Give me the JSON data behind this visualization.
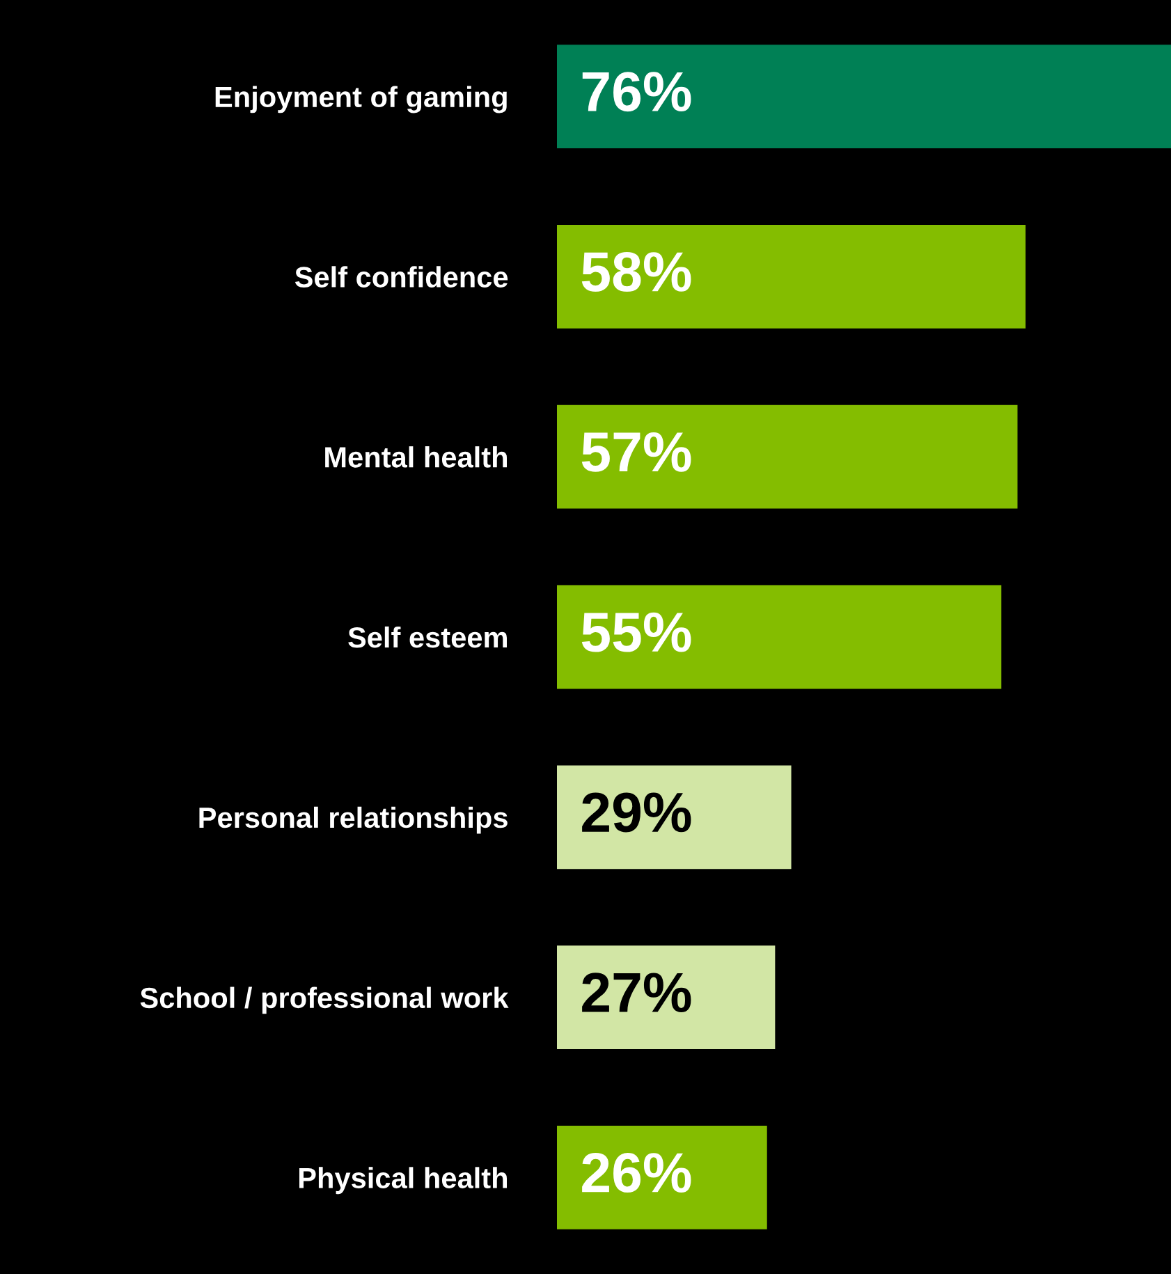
{
  "chart_data": {
    "type": "bar",
    "orientation": "horizontal",
    "categories": [
      "Enjoyment of gaming",
      "Self confidence",
      "Mental health",
      "Self esteem",
      "Personal relationships",
      "School / professional work",
      "Physical health"
    ],
    "values": [
      76,
      58,
      57,
      55,
      29,
      27,
      26
    ],
    "colors": [
      "#008055",
      "#84bd00",
      "#84bd00",
      "#84bd00",
      "#d2e6a5",
      "#d2e6a5",
      "#84bd00"
    ],
    "value_labels": [
      "76%",
      "58%",
      "57%",
      "55%",
      "29%",
      "27%",
      "26%"
    ],
    "tick_labels": "y",
    "grid": false,
    "legend": false
  }
}
